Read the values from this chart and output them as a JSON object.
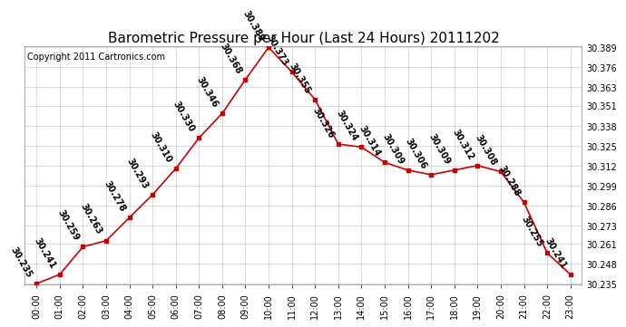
{
  "title": "Barometric Pressure per Hour (Last 24 Hours) 20111202",
  "copyright": "Copyright 2011 Cartronics.com",
  "hours": [
    "00:00",
    "01:00",
    "02:00",
    "03:00",
    "04:00",
    "05:00",
    "06:00",
    "07:00",
    "08:00",
    "09:00",
    "10:00",
    "11:00",
    "12:00",
    "13:00",
    "14:00",
    "15:00",
    "16:00",
    "17:00",
    "18:00",
    "19:00",
    "20:00",
    "21:00",
    "22:00",
    "23:00"
  ],
  "values": [
    30.235,
    30.241,
    30.259,
    30.263,
    30.278,
    30.293,
    30.31,
    30.33,
    30.346,
    30.368,
    30.389,
    30.373,
    30.355,
    30.326,
    30.324,
    30.314,
    30.309,
    30.306,
    30.309,
    30.312,
    30.308,
    30.288,
    30.255,
    30.241
  ],
  "ylim_min": 30.235,
  "ylim_max": 30.389,
  "line_color": "#cc0000",
  "marker_color": "#cc0000",
  "bg_color": "#ffffff",
  "grid_color": "#cccccc",
  "title_fontsize": 11,
  "copyright_fontsize": 7,
  "annotation_fontsize": 7,
  "tick_fontsize": 7,
  "right_yticks": [
    30.389,
    30.376,
    30.363,
    30.351,
    30.338,
    30.325,
    30.312,
    30.299,
    30.286,
    30.273,
    30.261,
    30.248,
    30.235
  ]
}
